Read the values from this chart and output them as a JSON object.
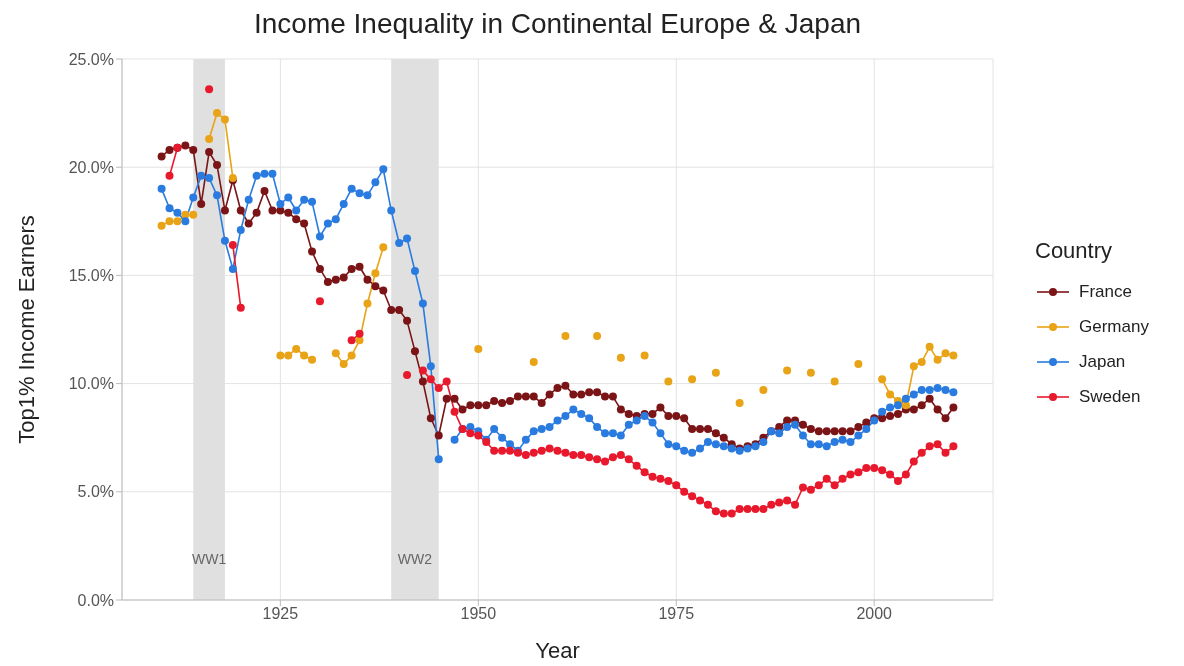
{
  "chart_data": {
    "type": "line",
    "title": "Income Inequality in Continental Europe & Japan",
    "xlabel": "Year",
    "ylabel": "Top1% Income Earners",
    "legend_title": "Country",
    "legend": "right",
    "grid": true,
    "marker": "circle",
    "line_style": "solid",
    "xlim": [
      1905,
      2015
    ],
    "xticks": [
      1925,
      1950,
      1975,
      2000
    ],
    "ylim": [
      0,
      25
    ],
    "yticks": [
      {
        "value": 0,
        "label": "0.0%"
      },
      {
        "value": 5,
        "label": "5.0%"
      },
      {
        "value": 10,
        "label": "10.0%"
      },
      {
        "value": 15,
        "label": "15.0%"
      },
      {
        "value": 20,
        "label": "20.0%"
      },
      {
        "value": 25,
        "label": "25.0%"
      }
    ],
    "bands": [
      {
        "axis": "x",
        "from": 1914,
        "to": 1918,
        "label": "WW1",
        "color": "#e0e0e0"
      },
      {
        "axis": "x",
        "from": 1939,
        "to": 1945,
        "label": "WW2",
        "color": "#e0e0e0"
      }
    ],
    "x": [
      1910,
      1911,
      1912,
      1913,
      1914,
      1915,
      1916,
      1917,
      1918,
      1919,
      1920,
      1921,
      1922,
      1923,
      1924,
      1925,
      1926,
      1927,
      1928,
      1929,
      1930,
      1931,
      1932,
      1933,
      1934,
      1935,
      1936,
      1937,
      1938,
      1939,
      1940,
      1941,
      1942,
      1943,
      1944,
      1945,
      1946,
      1947,
      1948,
      1949,
      1950,
      1951,
      1952,
      1953,
      1954,
      1955,
      1956,
      1957,
      1958,
      1959,
      1960,
      1961,
      1962,
      1963,
      1964,
      1965,
      1966,
      1967,
      1968,
      1969,
      1970,
      1971,
      1972,
      1973,
      1974,
      1975,
      1976,
      1977,
      1978,
      1979,
      1980,
      1981,
      1982,
      1983,
      1984,
      1985,
      1986,
      1987,
      1988,
      1989,
      1990,
      1991,
      1992,
      1993,
      1994,
      1995,
      1996,
      1997,
      1998,
      1999,
      2000,
      2001,
      2002,
      2003,
      2004,
      2005,
      2006,
      2007,
      2008,
      2009,
      2010
    ],
    "series": [
      {
        "name": "France",
        "color": "#7b1416",
        "values": [
          20.5,
          20.8,
          20.9,
          21.0,
          20.8,
          18.3,
          20.7,
          20.1,
          18.0,
          19.4,
          18.0,
          17.4,
          17.9,
          18.9,
          18.0,
          18.0,
          17.9,
          17.6,
          17.4,
          16.1,
          15.3,
          14.7,
          14.8,
          14.9,
          15.3,
          15.4,
          14.8,
          14.5,
          14.3,
          13.4,
          13.4,
          12.9,
          11.5,
          10.1,
          8.4,
          7.6,
          9.3,
          9.3,
          8.8,
          9.0,
          9.0,
          9.0,
          9.2,
          9.1,
          9.2,
          9.4,
          9.4,
          9.4,
          9.1,
          9.5,
          9.8,
          9.9,
          9.5,
          9.5,
          9.6,
          9.6,
          9.4,
          9.4,
          8.8,
          8.6,
          8.5,
          8.6,
          8.6,
          8.9,
          8.5,
          8.5,
          8.4,
          7.9,
          7.9,
          7.9,
          7.7,
          7.5,
          7.2,
          7.0,
          7.1,
          7.2,
          7.5,
          7.8,
          8.0,
          8.3,
          8.3,
          8.1,
          7.9,
          7.8,
          7.8,
          7.8,
          7.8,
          7.8,
          8.0,
          8.2,
          8.4,
          8.4,
          8.5,
          8.6,
          8.8,
          8.8,
          9.0,
          9.3,
          8.8,
          8.4,
          8.9
        ]
      },
      {
        "name": "Germany",
        "color": "#e8a316",
        "values": [
          17.3,
          17.5,
          17.5,
          17.8,
          17.8,
          null,
          21.3,
          22.5,
          22.2,
          19.5,
          null,
          null,
          null,
          null,
          null,
          11.3,
          11.3,
          11.6,
          11.3,
          11.1,
          null,
          null,
          11.4,
          10.9,
          11.3,
          12.0,
          13.7,
          15.1,
          16.3,
          null,
          null,
          null,
          null,
          null,
          null,
          null,
          null,
          null,
          null,
          null,
          11.6,
          null,
          null,
          null,
          null,
          null,
          null,
          11.0,
          null,
          null,
          null,
          12.2,
          null,
          null,
          null,
          12.2,
          null,
          null,
          11.2,
          null,
          null,
          11.3,
          null,
          null,
          10.1,
          null,
          null,
          10.2,
          null,
          null,
          10.5,
          null,
          null,
          9.1,
          null,
          null,
          9.7,
          null,
          null,
          10.6,
          null,
          null,
          10.5,
          null,
          null,
          10.1,
          null,
          null,
          10.9,
          null,
          null,
          10.2,
          9.5,
          9.2,
          9.0,
          10.8,
          11.0,
          11.7,
          11.1,
          11.4,
          11.3
        ]
      },
      {
        "name": "Japan",
        "color": "#2a7be0",
        "values": [
          19.0,
          18.1,
          17.9,
          17.5,
          18.6,
          19.6,
          19.5,
          18.7,
          16.6,
          15.3,
          17.1,
          18.5,
          19.6,
          19.7,
          19.7,
          18.3,
          18.6,
          18.0,
          18.5,
          18.4,
          16.8,
          17.4,
          17.6,
          18.3,
          19.0,
          18.8,
          18.7,
          19.3,
          19.9,
          18.0,
          16.5,
          16.7,
          15.2,
          13.7,
          10.8,
          6.5,
          null,
          7.4,
          7.9,
          8.0,
          7.8,
          7.4,
          7.9,
          7.5,
          7.2,
          6.9,
          7.4,
          7.8,
          7.9,
          8.0,
          8.3,
          8.5,
          8.8,
          8.6,
          8.4,
          8.0,
          7.7,
          7.7,
          7.6,
          8.1,
          8.3,
          8.5,
          8.2,
          7.7,
          7.2,
          7.1,
          6.9,
          6.8,
          7.0,
          7.3,
          7.2,
          7.1,
          7.0,
          6.9,
          7.0,
          7.1,
          7.3,
          7.8,
          7.7,
          8.0,
          8.1,
          7.6,
          7.2,
          7.2,
          7.1,
          7.3,
          7.4,
          7.3,
          7.6,
          7.9,
          8.3,
          8.7,
          8.9,
          9.0,
          9.3,
          9.5,
          9.7,
          9.7,
          9.8,
          9.7,
          9.6
        ]
      },
      {
        "name": "Sweden",
        "color": "#e8192c",
        "values": [
          null,
          19.6,
          20.9,
          null,
          null,
          null,
          23.6,
          null,
          null,
          16.4,
          13.5,
          null,
          null,
          null,
          null,
          null,
          null,
          null,
          null,
          null,
          13.8,
          null,
          null,
          null,
          12.0,
          12.3,
          null,
          null,
          null,
          null,
          null,
          10.4,
          null,
          10.6,
          10.2,
          9.8,
          10.1,
          8.7,
          7.9,
          7.7,
          7.6,
          7.3,
          6.9,
          6.9,
          6.9,
          6.8,
          6.7,
          6.8,
          6.9,
          7.0,
          6.9,
          6.8,
          6.7,
          6.7,
          6.6,
          6.5,
          6.4,
          6.6,
          6.7,
          6.5,
          6.2,
          5.9,
          5.7,
          5.6,
          5.5,
          5.3,
          5.0,
          4.8,
          4.6,
          4.4,
          4.1,
          4.0,
          4.0,
          4.2,
          4.2,
          4.2,
          4.2,
          4.4,
          4.5,
          4.6,
          4.4,
          5.2,
          5.1,
          5.3,
          5.6,
          5.3,
          5.6,
          5.8,
          5.9,
          6.1,
          6.1,
          6.0,
          5.8,
          5.5,
          5.8,
          6.4,
          6.8,
          7.1,
          7.2,
          6.8,
          7.1
        ]
      }
    ]
  }
}
